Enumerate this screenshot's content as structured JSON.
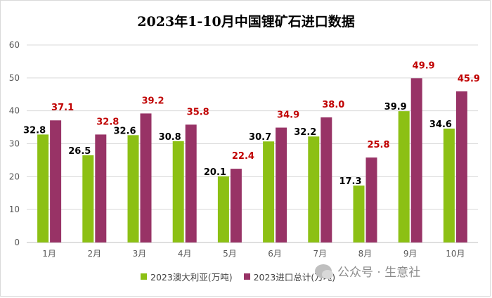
{
  "chart_data": {
    "type": "bar",
    "title": "2023年1-10月中国锂矿石进口数据",
    "categories": [
      "1月",
      "2月",
      "3月",
      "4月",
      "5月",
      "6月",
      "7月",
      "8月",
      "9月",
      "10月"
    ],
    "series": [
      {
        "name": "2023澳大利亚(万吨)",
        "values": [
          32.8,
          26.5,
          32.6,
          30.8,
          20.1,
          30.7,
          32.2,
          17.3,
          39.9,
          34.6
        ],
        "color": "#8cc014",
        "label_color": "#000000"
      },
      {
        "name": "2023进口总计(万吨)",
        "values": [
          37.1,
          32.8,
          39.2,
          35.8,
          22.4,
          34.9,
          38.0,
          25.8,
          49.9,
          45.9
        ],
        "color": "#983366",
        "label_color": "#c00000"
      }
    ],
    "y_ticks": [
      "0",
      "10",
      "20",
      "30",
      "40",
      "50",
      "60"
    ],
    "ylim": [
      0,
      60
    ],
    "grid": true,
    "legend_position": "bottom"
  },
  "watermark": {
    "text": "公众号 · 生意社",
    "icon": "wechat-icon"
  }
}
